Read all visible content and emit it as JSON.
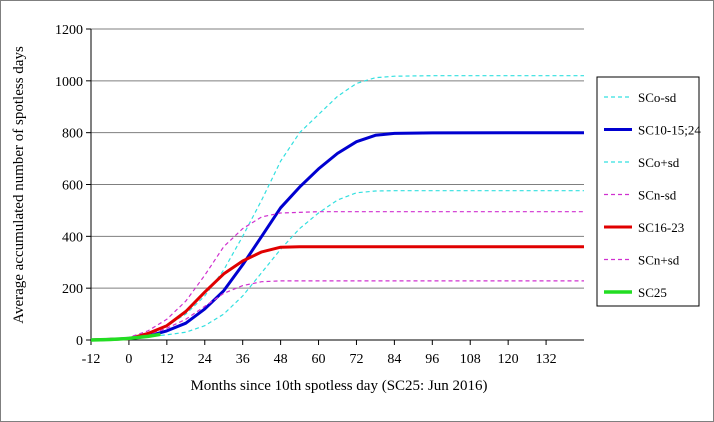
{
  "chart_data": {
    "type": "line",
    "title": "",
    "xlabel": "Months since 10th spotless day (SC25: Jun 2016)",
    "ylabel": "Average accumulated number of spotless days",
    "xlim": [
      -12,
      144
    ],
    "ylim": [
      0,
      1200
    ],
    "x_ticks": [
      "-12",
      "0",
      "12",
      "24",
      "36",
      "48",
      "60",
      "72",
      "84",
      "96",
      "108",
      "120",
      "132"
    ],
    "y_ticks": [
      "0",
      "200",
      "400",
      "600",
      "800",
      "1000",
      "1200"
    ],
    "grid": "horizontal",
    "legend_position": "right",
    "series": [
      {
        "name": "SCo-sd",
        "color": "#33e0e0",
        "dash": true,
        "width": 1.2,
        "points": [
          [
            -12,
            0
          ],
          [
            0,
            5
          ],
          [
            12,
            20
          ],
          [
            18,
            30
          ],
          [
            24,
            55
          ],
          [
            30,
            100
          ],
          [
            36,
            170
          ],
          [
            42,
            260
          ],
          [
            48,
            350
          ],
          [
            54,
            430
          ],
          [
            60,
            490
          ],
          [
            66,
            540
          ],
          [
            72,
            568
          ],
          [
            78,
            575
          ],
          [
            84,
            576
          ],
          [
            144,
            576
          ]
        ]
      },
      {
        "name": "SC10-15;24",
        "color": "#0000d0",
        "dash": false,
        "width": 3,
        "points": [
          [
            -12,
            0
          ],
          [
            0,
            5
          ],
          [
            6,
            15
          ],
          [
            12,
            35
          ],
          [
            18,
            65
          ],
          [
            24,
            120
          ],
          [
            30,
            190
          ],
          [
            36,
            290
          ],
          [
            42,
            400
          ],
          [
            48,
            510
          ],
          [
            54,
            590
          ],
          [
            60,
            660
          ],
          [
            66,
            720
          ],
          [
            72,
            765
          ],
          [
            78,
            790
          ],
          [
            84,
            797
          ],
          [
            96,
            799
          ],
          [
            120,
            800
          ],
          [
            144,
            800
          ]
        ]
      },
      {
        "name": "SCo+sd",
        "color": "#33e0e0",
        "dash": true,
        "width": 1.2,
        "points": [
          [
            -12,
            0
          ],
          [
            0,
            8
          ],
          [
            6,
            25
          ],
          [
            12,
            55
          ],
          [
            18,
            100
          ],
          [
            24,
            170
          ],
          [
            30,
            270
          ],
          [
            36,
            400
          ],
          [
            42,
            540
          ],
          [
            48,
            690
          ],
          [
            54,
            800
          ],
          [
            60,
            870
          ],
          [
            66,
            940
          ],
          [
            72,
            990
          ],
          [
            78,
            1012
          ],
          [
            84,
            1018
          ],
          [
            96,
            1020
          ],
          [
            144,
            1020
          ]
        ]
      },
      {
        "name": "SCn-sd",
        "color": "#d030d0",
        "dash": true,
        "width": 1.2,
        "points": [
          [
            -12,
            0
          ],
          [
            0,
            5
          ],
          [
            6,
            20
          ],
          [
            12,
            45
          ],
          [
            18,
            80
          ],
          [
            24,
            130
          ],
          [
            30,
            180
          ],
          [
            36,
            210
          ],
          [
            42,
            225
          ],
          [
            48,
            228
          ],
          [
            60,
            228
          ],
          [
            144,
            228
          ]
        ]
      },
      {
        "name": "SC16-23",
        "color": "#e00000",
        "dash": false,
        "width": 3,
        "points": [
          [
            -12,
            0
          ],
          [
            0,
            5
          ],
          [
            6,
            25
          ],
          [
            12,
            55
          ],
          [
            18,
            110
          ],
          [
            24,
            185
          ],
          [
            30,
            255
          ],
          [
            36,
            305
          ],
          [
            42,
            340
          ],
          [
            48,
            358
          ],
          [
            54,
            360
          ],
          [
            144,
            360
          ]
        ]
      },
      {
        "name": "SCn+sd",
        "color": "#d030d0",
        "dash": true,
        "width": 1.2,
        "points": [
          [
            -12,
            0
          ],
          [
            0,
            10
          ],
          [
            6,
            35
          ],
          [
            12,
            80
          ],
          [
            18,
            150
          ],
          [
            24,
            250
          ],
          [
            30,
            360
          ],
          [
            36,
            430
          ],
          [
            42,
            475
          ],
          [
            48,
            490
          ],
          [
            60,
            495
          ],
          [
            144,
            495
          ]
        ]
      },
      {
        "name": "SC25",
        "color": "#22dd22",
        "dash": false,
        "width": 3.5,
        "points": [
          [
            -12,
            0
          ],
          [
            -6,
            2
          ],
          [
            0,
            6
          ],
          [
            6,
            14
          ],
          [
            10,
            22
          ]
        ]
      }
    ]
  }
}
